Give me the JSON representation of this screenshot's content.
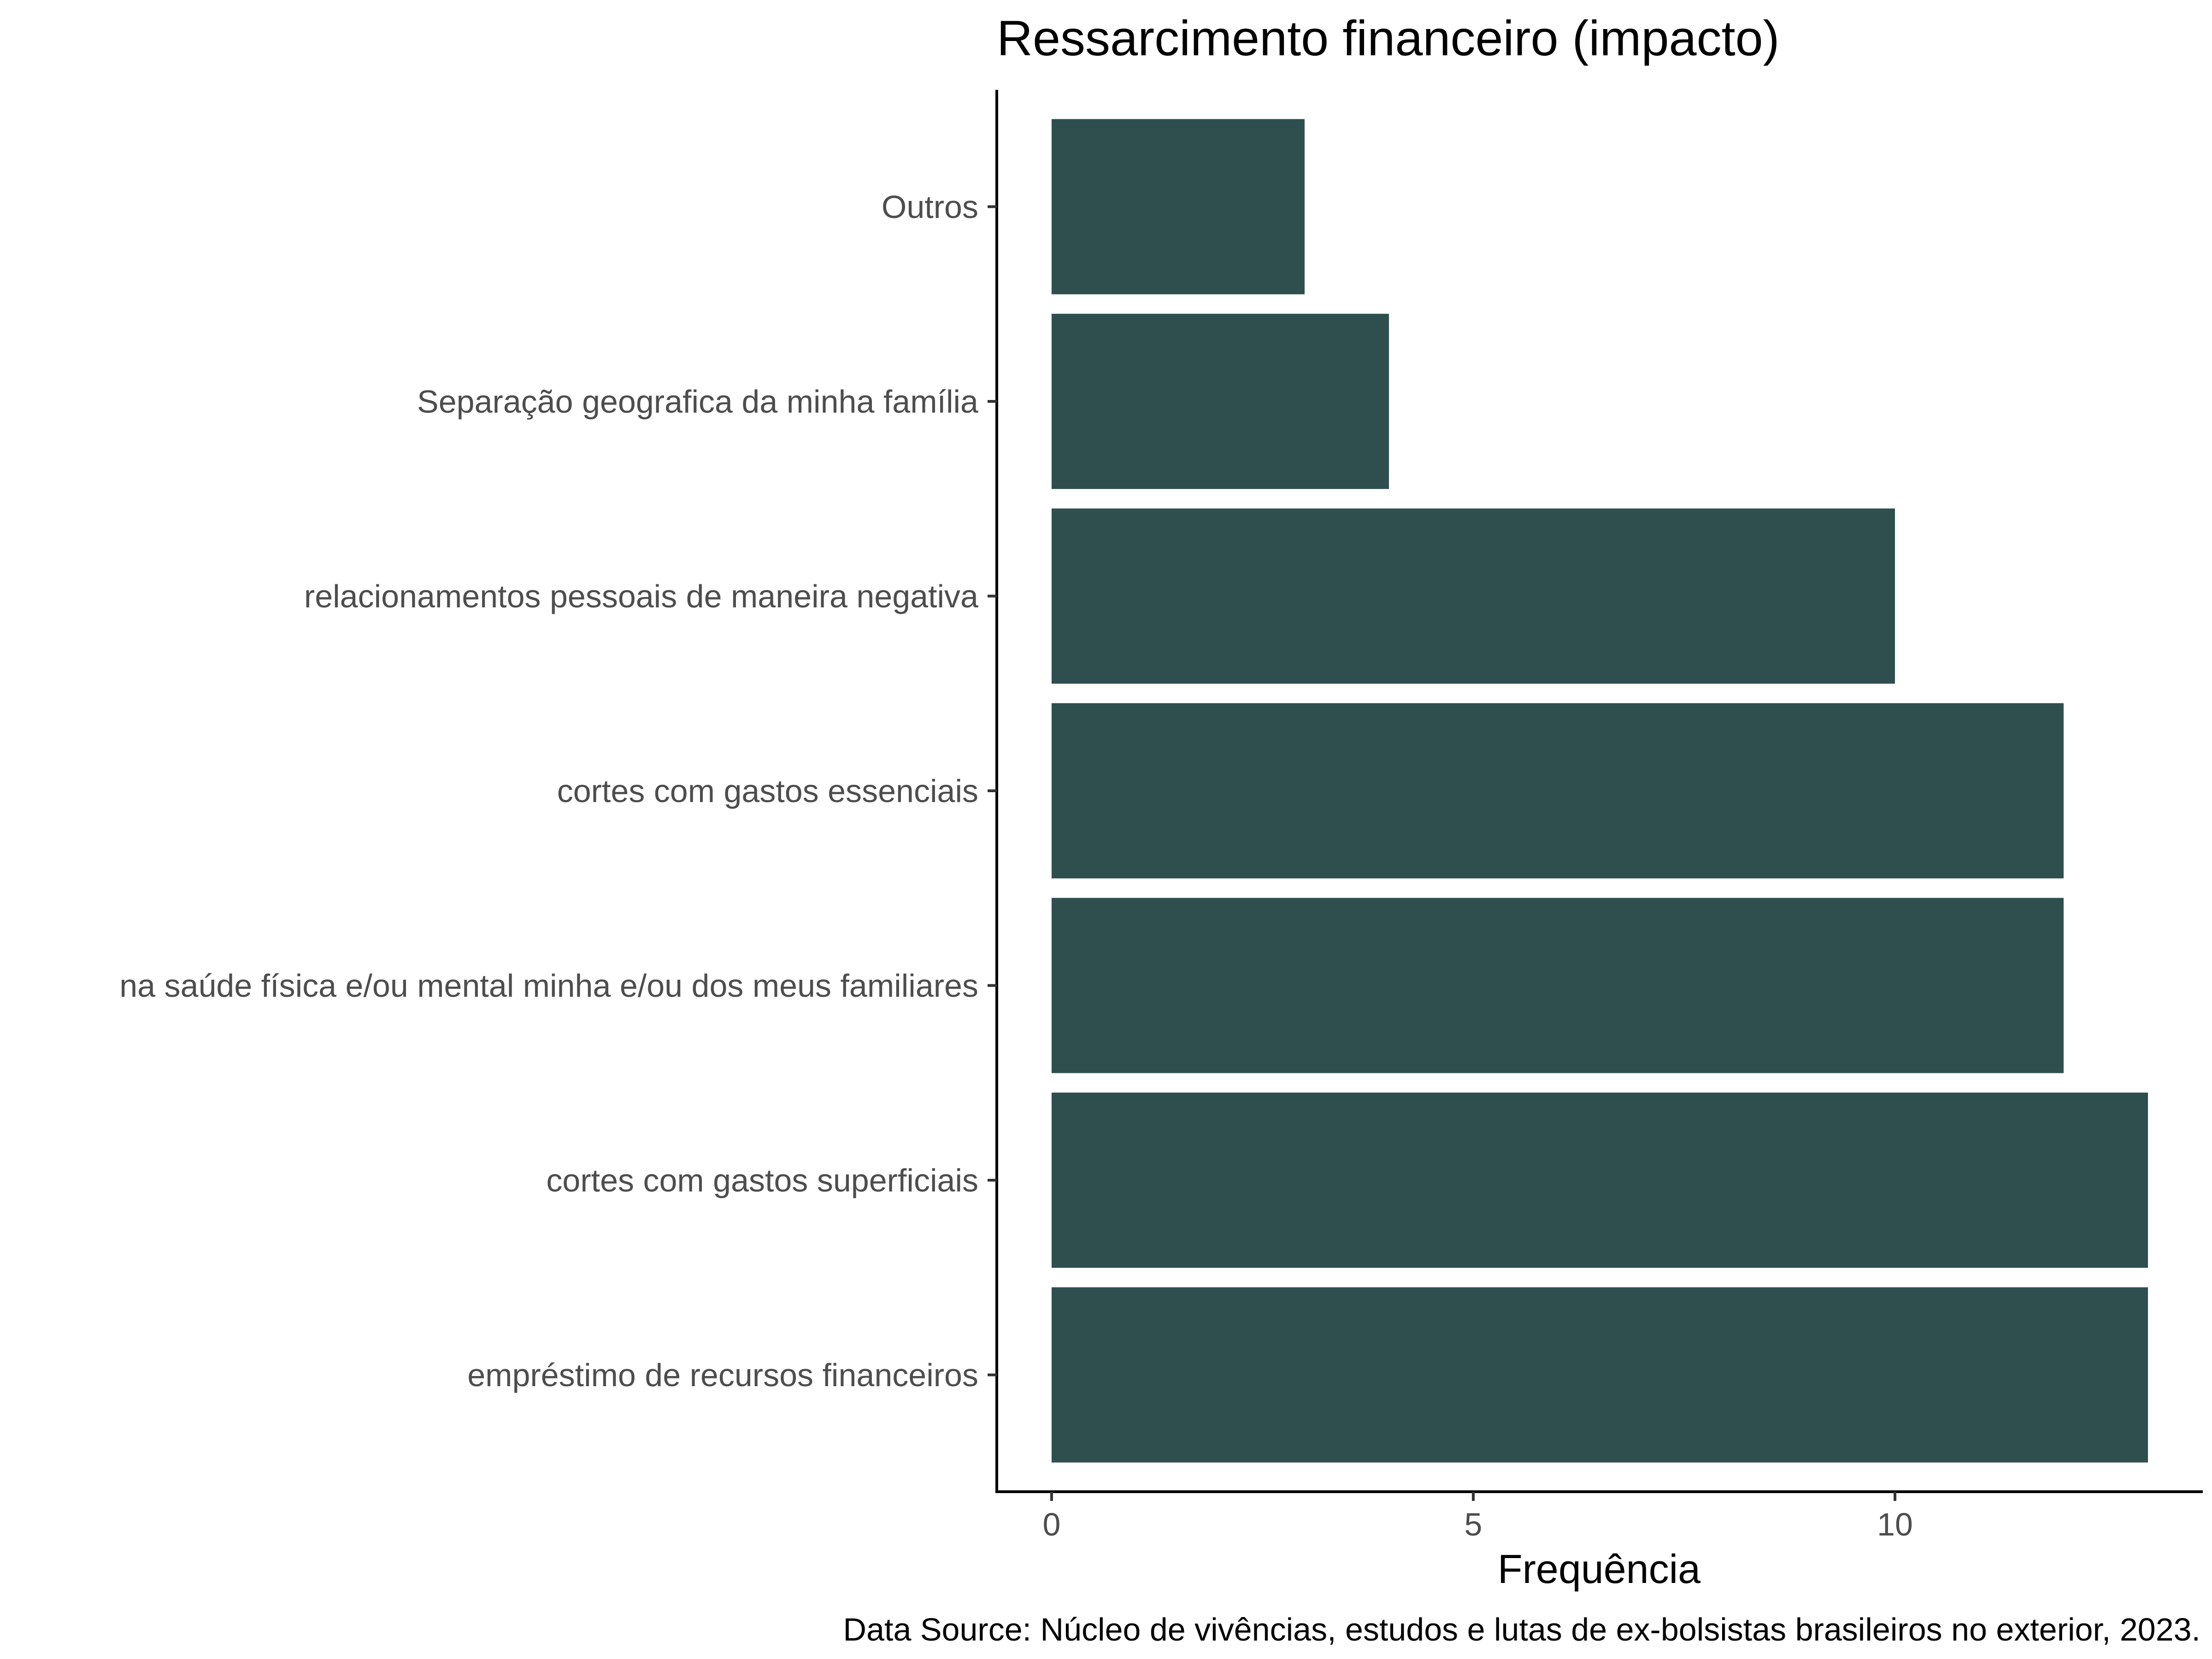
{
  "chart_data": {
    "type": "bar",
    "orientation": "horizontal",
    "title": "Ressarcimento financeiro (impacto)",
    "xlabel": "Frequência",
    "ylabel": "",
    "caption": "Data Source: Núcleo de vivências, estudos e lutas de ex-bolsistas brasileiros no exterior, 2023.",
    "categories": [
      "Outros",
      "Separação geografica da minha família",
      "relacionamentos pessoais de maneira negativa",
      "cortes com gastos essenciais",
      "na saúde física e/ou mental minha e/ou dos meus familiares",
      "cortes com gastos superficiais",
      "empréstimo de recursos financeiros"
    ],
    "values": [
      3,
      4,
      10,
      12,
      12,
      13,
      13
    ],
    "xlim": [
      -0.65,
      13.65
    ],
    "xticks": [
      0,
      5,
      10
    ],
    "xtick_labels": [
      "0",
      "5",
      "10"
    ],
    "bar_color": "#2f4f4f",
    "grid": false,
    "legend": "none"
  }
}
